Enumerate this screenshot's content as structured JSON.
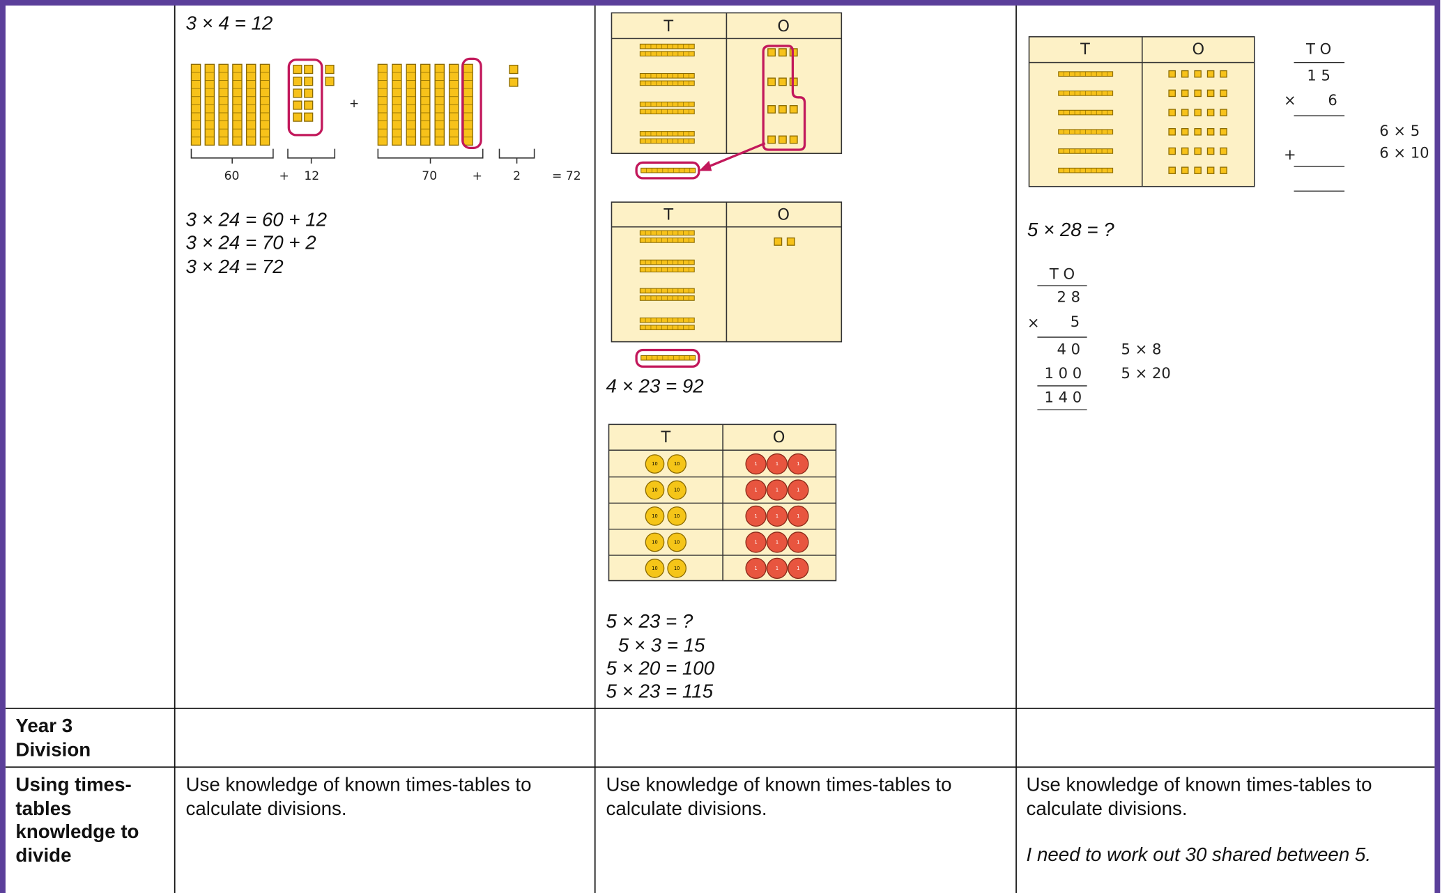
{
  "row_1": {
    "column_2": {
      "equation_top": "3 × 4 = 12",
      "labels": [
        "60",
        "+",
        "12",
        "70",
        "+",
        "2",
        "= 72"
      ],
      "plus": "+",
      "equations": [
        "3 × 24 = 60 + 12",
        "3 × 24 = 70 + 2",
        "3 × 24 = 72"
      ]
    },
    "column_3": {
      "headers": [
        "T",
        "O"
      ],
      "equation": "4 × 23 = 92",
      "counter_labels": [
        "10",
        "1"
      ],
      "equations": [
        "5 × 23 = ?",
        "5 × 3 = 15",
        "5 × 20 = 100",
        "5 × 23 = 115"
      ]
    },
    "column_4": {
      "headers": [
        "T",
        "O"
      ],
      "column_method_1": {
        "header": "T O",
        "rows": [
          "1 5",
          "6"
        ],
        "symbols": [
          "×",
          "+"
        ],
        "notes": [
          "6 × 5",
          "6 × 10"
        ]
      },
      "question": "5 × 28 = ?",
      "column_method_2": {
        "header": "T O",
        "rows": [
          "2 8",
          "5",
          "4 0",
          "1 0 0",
          "1 4 0"
        ],
        "symbol": "×",
        "notes": [
          "5 × 8",
          "5 × 20"
        ]
      }
    }
  },
  "row_2": {
    "heading": [
      "Year 3",
      "Division"
    ]
  },
  "row_3": {
    "heading": "Using times-tables knowledge to divide",
    "column_2": {
      "text": "Use knowledge of known times-tables to calculate divisions."
    },
    "column_3": {
      "text": "Use knowledge of known times-tables to calculate divisions."
    },
    "column_4": {
      "text": "Use knowledge of known times-tables to calculate divisions.",
      "example": "I need to work out 30 shared between 5."
    }
  }
}
